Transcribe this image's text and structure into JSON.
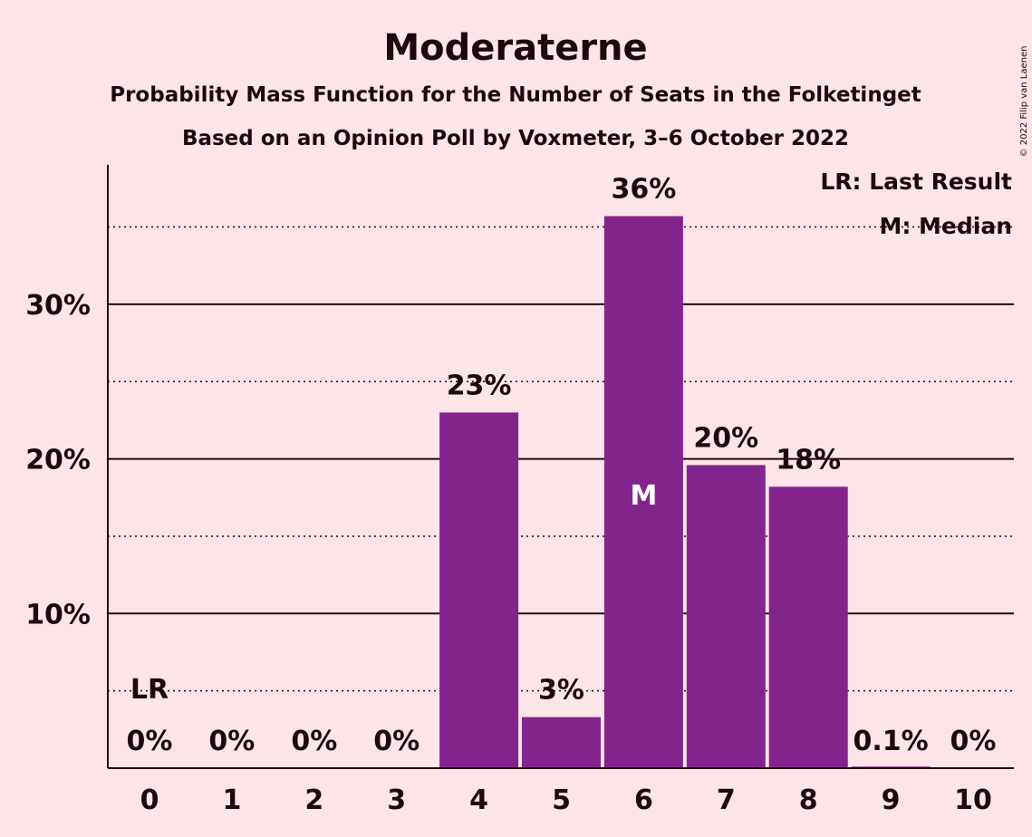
{
  "chart_data": {
    "type": "bar",
    "title": "Moderaterne",
    "subtitle": "Probability Mass Function for the Number of Seats in the Folketinget",
    "subtitle2": "Based on an Opinion Poll by Voxmeter, 3–6 October 2022",
    "copyright": "© 2022 Filip van Laenen",
    "categories": [
      "0",
      "1",
      "2",
      "3",
      "4",
      "5",
      "6",
      "7",
      "8",
      "9",
      "10"
    ],
    "values": [
      0,
      0,
      0,
      0,
      23.0,
      3.3,
      35.7,
      19.6,
      18.2,
      0.1,
      0
    ],
    "data_labels": [
      "0%",
      "0%",
      "0%",
      "0%",
      "23%",
      "3%",
      "36%",
      "20%",
      "18%",
      "0.1%",
      "0%"
    ],
    "y_ticks": [
      {
        "value": 10,
        "label": "10%"
      },
      {
        "value": 20,
        "label": "20%"
      },
      {
        "value": 30,
        "label": "30%"
      }
    ],
    "y_minor_ticks": [
      5,
      15,
      25,
      35
    ],
    "ylim": [
      0,
      39
    ],
    "bar_color": "#82248c",
    "last_result": {
      "category": "0",
      "label": "LR"
    },
    "median": {
      "category": "6",
      "label": "M"
    },
    "legend": {
      "position": "top-right",
      "entries": [
        "LR: Last Result",
        "M: Median"
      ]
    },
    "xlabel": "",
    "ylabel": ""
  }
}
